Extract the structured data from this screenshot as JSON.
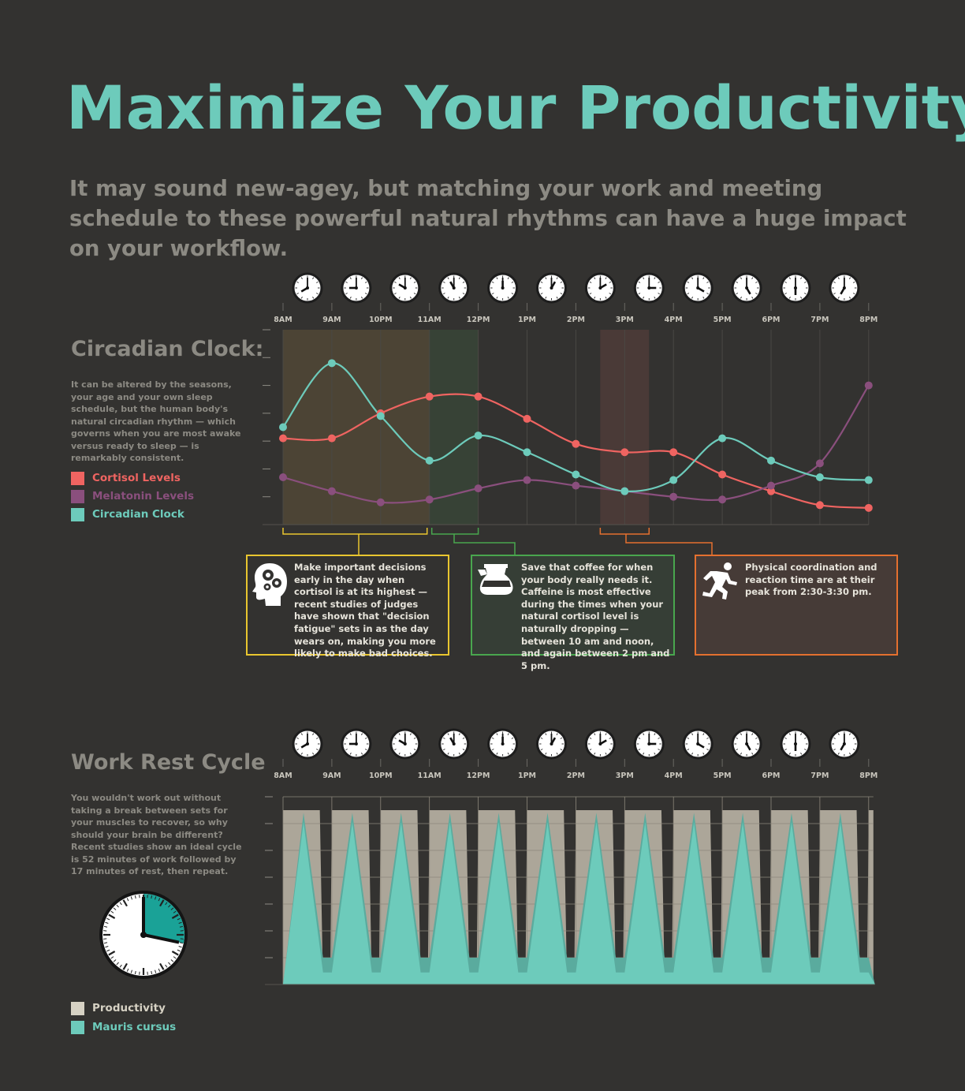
{
  "title": "Maximize Your Productivity",
  "subtitle": "It may sound new-agey, but matching your work and meeting schedule to these powerful natural rhythms can have a huge impact on your workflow.",
  "time_labels": [
    "8AM",
    "9AM",
    "10PM",
    "11AM",
    "12PM",
    "1PM",
    "2PM",
    "3PM",
    "4PM",
    "5PM",
    "6PM",
    "7PM",
    "8PM"
  ],
  "colors": {
    "background": "#333230",
    "accent": "#6dcbbb",
    "cortisol": "#ef6461",
    "melatonin": "#8a4f7d",
    "circadian": "#6dcbbb",
    "productivity": "#aca699",
    "yellow": "#e9c62f",
    "green": "#49a64e",
    "orange": "#e4702f"
  },
  "circadian": {
    "title": "Circadian Clock:",
    "description": "It can be altered by the seasons, your age and your own sleep schedule, but the human body's natural circadian rhythm — which governs when you are most awake versus ready to sleep — is remarkably consistent.",
    "legend": [
      "Cortisol Levels",
      "Melatonin Levels",
      "Circadian Clock"
    ],
    "callouts": [
      {
        "text": "Make important decisions early in the day when cortisol is at its highest — recent studies of judges have shown that \"decision fatigue\" sets in as the day wears on, making you more likely to make bad choices.",
        "icon": "brain-gears-icon"
      },
      {
        "text": "Save that coffee for when your body really needs it. Caffeine is most effective during the times when your natural cortisol level is naturally dropping — between 10 am and noon, and again between 2 pm and 5 pm.",
        "icon": "coffee-pot-icon"
      },
      {
        "text": "Physical coordination and reaction time are at their peak from 2:30-3:30 pm.",
        "icon": "running-man-icon"
      }
    ]
  },
  "work_rest": {
    "title": "Work Rest Cycle",
    "description": "You wouldn't work out without taking a break between sets for your muscles to recover, so why should your brain be different? Recent studies show an ideal cycle is 52 minutes of work followed by 17 minutes of rest, then repeat.",
    "legend": [
      "Productivity",
      "Mauris cursus"
    ],
    "clock_work_minutes": 52,
    "clock_rest_minutes": 17
  },
  "chart_data": [
    {
      "type": "line",
      "x": [
        "8AM",
        "9AM",
        "10PM",
        "11AM",
        "12PM",
        "1PM",
        "2PM",
        "3PM",
        "4PM",
        "5PM",
        "6PM",
        "7PM",
        "8PM"
      ],
      "series": [
        {
          "name": "Cortisol Levels",
          "x": [
            0,
            1,
            2,
            3,
            4,
            5,
            6,
            7,
            8,
            9,
            10,
            11,
            12
          ],
          "values": [
            3.1,
            3.1,
            4.0,
            4.6,
            4.6,
            3.8,
            2.9,
            2.6,
            2.6,
            1.8,
            1.2,
            0.7,
            0.6
          ]
        },
        {
          "name": "Melatonin Levels",
          "x": [
            0,
            1,
            2,
            3,
            4,
            5,
            6,
            7,
            8,
            9,
            10,
            11,
            12
          ],
          "values": [
            1.7,
            1.2,
            0.8,
            0.9,
            1.3,
            1.6,
            1.4,
            1.2,
            1.0,
            0.9,
            1.4,
            2.2,
            5.0
          ]
        },
        {
          "name": "Circadian Clock",
          "x": [
            0,
            1,
            2,
            3,
            4,
            5,
            6,
            7,
            8,
            9,
            10,
            11,
            12
          ],
          "values": [
            3.5,
            5.8,
            3.9,
            2.3,
            3.2,
            2.6,
            1.8,
            1.2,
            1.6,
            3.1,
            2.3,
            1.7,
            1.6
          ]
        }
      ],
      "highlight_ranges": [
        {
          "from": 0,
          "to": 3,
          "color": "#e9c62f"
        },
        {
          "from": 3,
          "to": 4,
          "color": "#49a64e"
        },
        {
          "from": 6.5,
          "to": 7.5,
          "color": "#e4702f"
        }
      ],
      "ylim": [
        0,
        7
      ],
      "grid": true
    },
    {
      "type": "area",
      "x": [
        "8AM",
        "9AM",
        "10PM",
        "11AM",
        "12PM",
        "1PM",
        "2PM",
        "3PM",
        "4PM",
        "5PM",
        "6PM",
        "7PM",
        "8PM"
      ],
      "series": [
        {
          "name": "Productivity",
          "cycle": "trapezoid",
          "peak": 6.5,
          "low": 0.0,
          "cycles": 12
        },
        {
          "name": "Mauris cursus",
          "cycle": "triangle",
          "peak": 6.4,
          "low": 1.0,
          "cycles": 12
        }
      ],
      "ylim": [
        0,
        7
      ],
      "grid": true
    }
  ]
}
